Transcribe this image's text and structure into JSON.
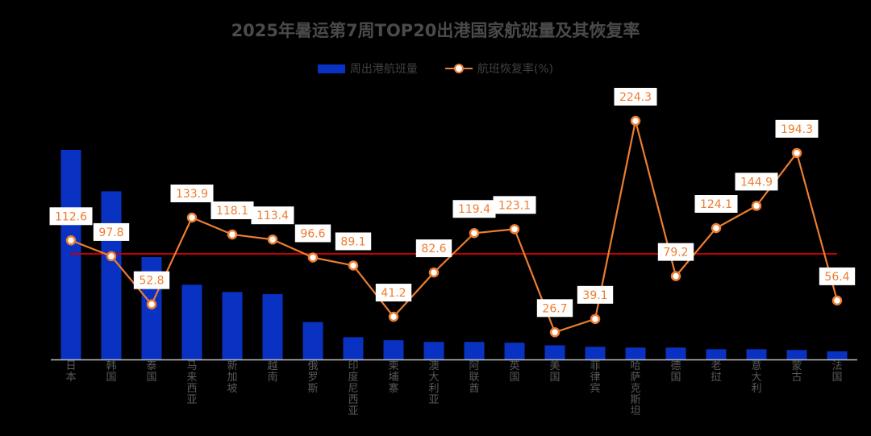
{
  "chart_data": {
    "type": "bar+line",
    "title": "2025年暑运第7周TOP20出港国家航班量及其恢复率",
    "categories": [
      "日本",
      "韩国",
      "泰国",
      "马来西亚",
      "新加坡",
      "越南",
      "俄罗斯",
      "印度尼西亚",
      "柬埔寨",
      "澳大利亚",
      "阿联酋",
      "英国",
      "美国",
      "菲律宾",
      "哈萨克斯坦",
      "德国",
      "老挝",
      "意大利",
      "蒙古",
      "法国"
    ],
    "series": [
      {
        "name": "周出港航班量",
        "type": "bar",
        "color": "#0a32c2",
        "values": [
          1290,
          1035,
          630,
          460,
          415,
          402,
          230,
          137,
          118,
          108,
          108,
          103,
          87,
          78,
          73,
          73,
          63,
          63,
          58,
          50
        ]
      },
      {
        "name": "航班恢复率(%)",
        "type": "line",
        "color": "#ed7d31",
        "values": [
          112.6,
          97.8,
          52.8,
          133.9,
          118.1,
          113.4,
          96.6,
          89.1,
          41.2,
          82.6,
          119.4,
          123.1,
          26.7,
          39.1,
          224.3,
          79.2,
          124.1,
          144.9,
          194.3,
          56.4
        ]
      }
    ],
    "reference_line": {
      "value": 100,
      "color": "#c00000"
    },
    "legend_position": "top-center",
    "grid": false
  }
}
